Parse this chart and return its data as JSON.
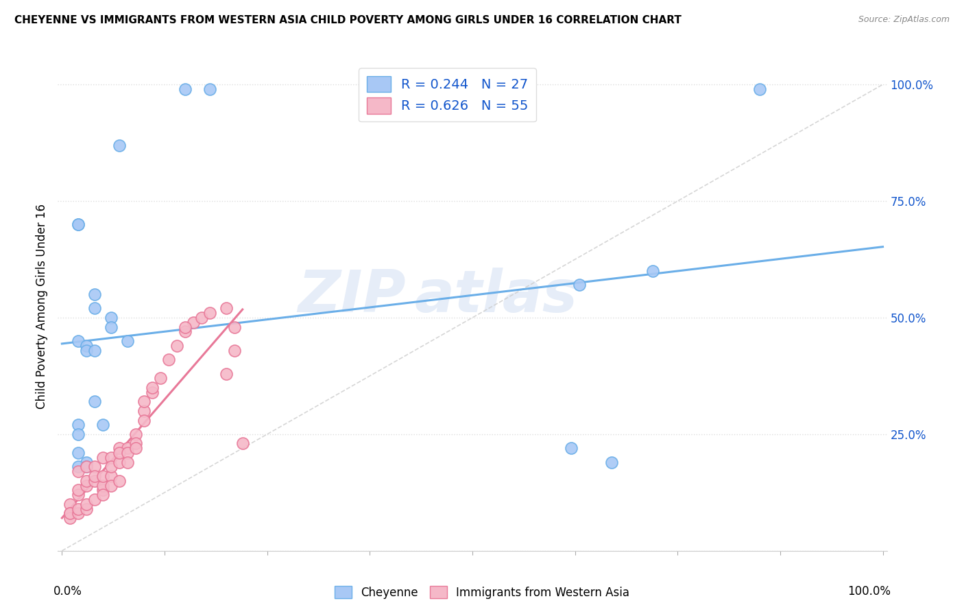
{
  "title": "CHEYENNE VS IMMIGRANTS FROM WESTERN ASIA CHILD POVERTY AMONG GIRLS UNDER 16 CORRELATION CHART",
  "source": "Source: ZipAtlas.com",
  "ylabel": "Child Poverty Among Girls Under 16",
  "cheyenne_color": "#a8c8f5",
  "cheyenne_edge": "#6aaee8",
  "immigrants_color": "#f5b8c8",
  "immigrants_edge": "#e87898",
  "trendline_cheyenne": "#6aaee8",
  "trendline_immigrants": "#e87898",
  "diagonal_color": "#cccccc",
  "R_cheyenne": 0.244,
  "N_cheyenne": 27,
  "R_immigrants": 0.626,
  "N_immigrants": 55,
  "watermark_top": "ZIP",
  "watermark_bot": "atlas",
  "cheyenne_x": [
    0.15,
    0.18,
    0.07,
    0.02,
    0.02,
    0.04,
    0.04,
    0.06,
    0.06,
    0.08,
    0.02,
    0.03,
    0.03,
    0.04,
    0.02,
    0.02,
    0.02,
    0.03,
    0.63,
    0.72,
    0.62,
    0.67,
    0.85,
    0.02,
    0.03,
    0.04,
    0.05
  ],
  "cheyenne_y": [
    0.99,
    0.99,
    0.87,
    0.7,
    0.7,
    0.55,
    0.52,
    0.5,
    0.48,
    0.45,
    0.45,
    0.44,
    0.43,
    0.43,
    0.27,
    0.25,
    0.21,
    0.19,
    0.57,
    0.6,
    0.22,
    0.19,
    0.99,
    0.18,
    0.18,
    0.32,
    0.27
  ],
  "immigrants_x": [
    0.02,
    0.03,
    0.04,
    0.05,
    0.06,
    0.07,
    0.08,
    0.09,
    0.1,
    0.11,
    0.12,
    0.13,
    0.14,
    0.15,
    0.16,
    0.17,
    0.18,
    0.2,
    0.21,
    0.22,
    0.01,
    0.01,
    0.02,
    0.02,
    0.03,
    0.03,
    0.04,
    0.04,
    0.05,
    0.05,
    0.05,
    0.06,
    0.06,
    0.07,
    0.07,
    0.08,
    0.09,
    0.1,
    0.01,
    0.01,
    0.02,
    0.02,
    0.03,
    0.03,
    0.04,
    0.05,
    0.06,
    0.07,
    0.08,
    0.09,
    0.1,
    0.11,
    0.15,
    0.2,
    0.21
  ],
  "immigrants_y": [
    0.17,
    0.18,
    0.18,
    0.2,
    0.2,
    0.22,
    0.22,
    0.25,
    0.3,
    0.34,
    0.37,
    0.41,
    0.44,
    0.47,
    0.49,
    0.5,
    0.51,
    0.52,
    0.48,
    0.23,
    0.1,
    0.08,
    0.12,
    0.13,
    0.14,
    0.15,
    0.15,
    0.16,
    0.13,
    0.14,
    0.16,
    0.16,
    0.18,
    0.19,
    0.21,
    0.21,
    0.23,
    0.28,
    0.07,
    0.08,
    0.08,
    0.09,
    0.09,
    0.1,
    0.11,
    0.12,
    0.14,
    0.15,
    0.19,
    0.22,
    0.32,
    0.35,
    0.48,
    0.38,
    0.43
  ],
  "ylim": [
    0.0,
    1.05
  ],
  "xlim": [
    -0.005,
    1.005
  ],
  "ytick_vals": [
    0.0,
    0.25,
    0.5,
    0.75,
    1.0
  ],
  "ytick_labels": [
    "",
    "25.0%",
    "50.0%",
    "75.0%",
    "100.0%"
  ],
  "background_color": "#ffffff",
  "grid_color": "#dddddd",
  "legend_color": "#1155cc"
}
